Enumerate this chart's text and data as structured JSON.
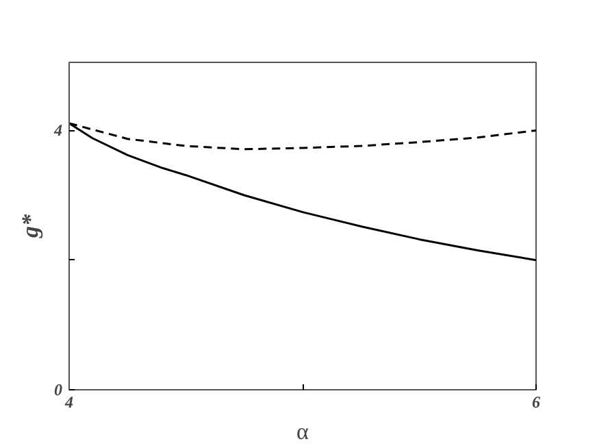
{
  "chart_data": {
    "type": "line",
    "xlabel": "α",
    "ylabel": "g*",
    "xlim": [
      4,
      6
    ],
    "ylim": [
      0,
      5.05
    ],
    "xticks": [
      4,
      {
        "value": 5,
        "label": null
      },
      6
    ],
    "yticks": [
      0,
      {
        "value": 2,
        "label": null
      },
      4
    ],
    "grid": false,
    "marker": "none",
    "series": [
      {
        "color": "#000000",
        "line_style": "solid",
        "x": [
          4,
          4.1,
          4.25,
          4.4,
          4.5,
          4.75,
          5,
          5.25,
          5.5,
          5.75,
          6
        ],
        "values": [
          4.11,
          3.88,
          3.62,
          3.42,
          3.31,
          3.0,
          2.74,
          2.52,
          2.32,
          2.15,
          2.0
        ]
      },
      {
        "color": "#000000",
        "line_style": "dashed",
        "x": [
          4,
          4.25,
          4.5,
          4.75,
          5,
          5.25,
          5.5,
          5.75,
          6
        ],
        "values": [
          4.11,
          3.87,
          3.76,
          3.71,
          3.73,
          3.76,
          3.82,
          3.89,
          4.0
        ]
      }
    ]
  }
}
